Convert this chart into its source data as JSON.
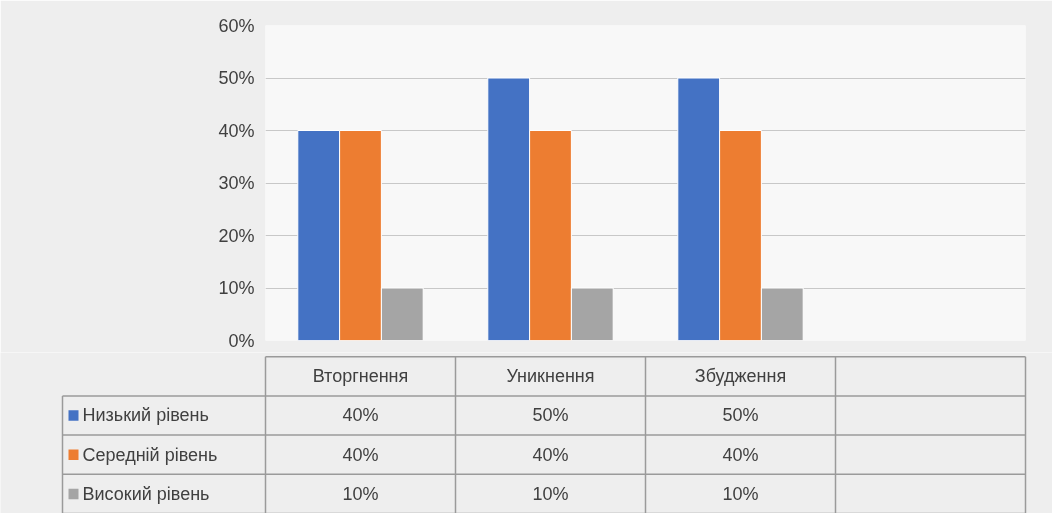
{
  "chart_data": {
    "type": "bar",
    "categories": [
      "Вторгнення",
      "Уникнення",
      "Збудження",
      null
    ],
    "series": [
      {
        "name": "Низький рівень",
        "color": "#4472c4",
        "values": [
          40,
          50,
          50,
          null
        ],
        "value_labels": [
          "40%",
          "50%",
          "50%",
          null
        ]
      },
      {
        "name": "Середній рівень",
        "color": "#ed7d31",
        "values": [
          40,
          40,
          40,
          null
        ],
        "value_labels": [
          "40%",
          "40%",
          "40%",
          null
        ]
      },
      {
        "name": "Високий рівень",
        "color": "#a5a5a5",
        "values": [
          10,
          10,
          10,
          null
        ],
        "value_labels": [
          "10%",
          "10%",
          "10%",
          null
        ]
      }
    ],
    "ylim": [
      0,
      60
    ],
    "yticks": [
      {
        "value": 0,
        "label": "0%"
      },
      {
        "value": 10,
        "label": "10%"
      },
      {
        "value": 20,
        "label": "20%"
      },
      {
        "value": 30,
        "label": "30%"
      },
      {
        "value": 40,
        "label": "40%"
      },
      {
        "value": 50,
        "label": "50%"
      },
      {
        "value": 60,
        "label": "60%"
      }
    ],
    "grid": "y",
    "legend": "bottom left"
  }
}
